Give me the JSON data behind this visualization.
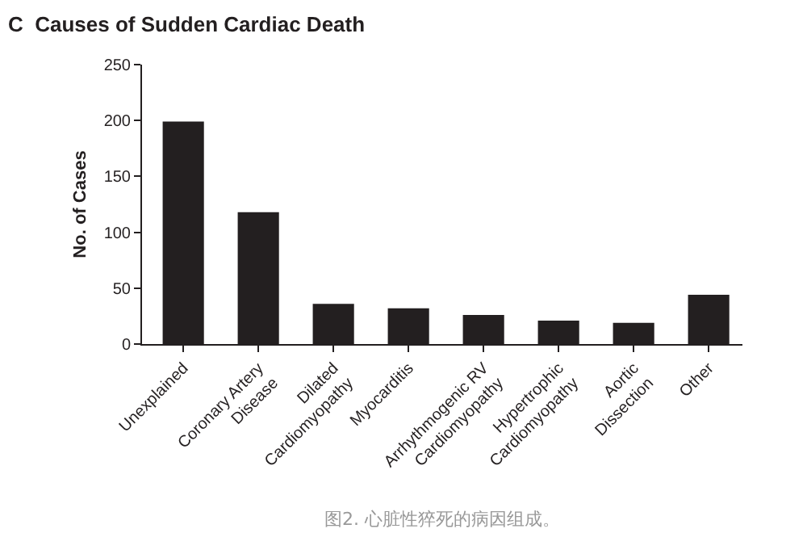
{
  "chart_data": {
    "type": "bar",
    "title": "C  Causes of Sudden Cardiac Death",
    "categories": [
      "Unexplained",
      "Coronary Artery\nDisease",
      "Dilated\nCardiomyopathy",
      "Myocarditis",
      "Arrhythmogenic RV\nCardiomyopathy",
      "Hypertrophic\nCardiomyopathy",
      "Aortic\nDissection",
      "Other"
    ],
    "values": [
      199,
      118,
      36,
      32,
      26,
      21,
      19,
      44
    ],
    "color": "#231f20",
    "ylabel": "No. of Cases",
    "ylim": [
      0,
      250
    ],
    "yticks": [
      0,
      50,
      100,
      150,
      200,
      250
    ],
    "grid": false,
    "legend": false,
    "annotations": [
      "图2. 心脏性猝死的病因组成。"
    ]
  }
}
